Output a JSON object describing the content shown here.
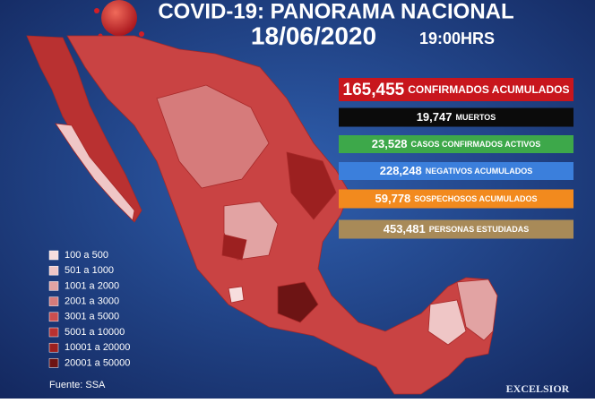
{
  "header": {
    "title": "COVID-19: PANORAMA NACIONAL",
    "date": "18/06/2020",
    "time": "19:00HRS"
  },
  "stats": [
    {
      "value": "165,455",
      "label": "CONFIRMADOS ACUMULADOS",
      "color": "#c8161d"
    },
    {
      "value": "19,747",
      "label": "MUERTOS",
      "color": "#0b0b0b"
    },
    {
      "value": "23,528",
      "label": "CASOS CONFIRMADOS ACTIVOS",
      "color": "#3da84a"
    },
    {
      "value": "228,248",
      "label": "NEGATIVOS ACUMULADOS",
      "color": "#3b7fdc"
    },
    {
      "value": "59,778",
      "label": "SOSPECHOSOS ACUMULADOS",
      "color": "#f28a1e"
    },
    {
      "value": "453,481",
      "label": "PERSONAS ESTUDIADAS",
      "color": "#a88a58"
    }
  ],
  "legend": [
    {
      "label": "100 a 500",
      "color": "#f7dede"
    },
    {
      "label": "501 a 1000",
      "color": "#efc6c6"
    },
    {
      "label": "1001 a 2000",
      "color": "#e2a3a3"
    },
    {
      "label": "2001 a 3000",
      "color": "#d67b7b"
    },
    {
      "label": "3001 a 5000",
      "color": "#cb4e4e"
    },
    {
      "label": "5001 a 10000",
      "color": "#b93131"
    },
    {
      "label": "10001 a 20000",
      "color": "#9c2020"
    },
    {
      "label": "20001 a 50000",
      "color": "#6d1414"
    }
  ],
  "source": "Fuente: SSA",
  "logo": "EXCELSIOR"
}
